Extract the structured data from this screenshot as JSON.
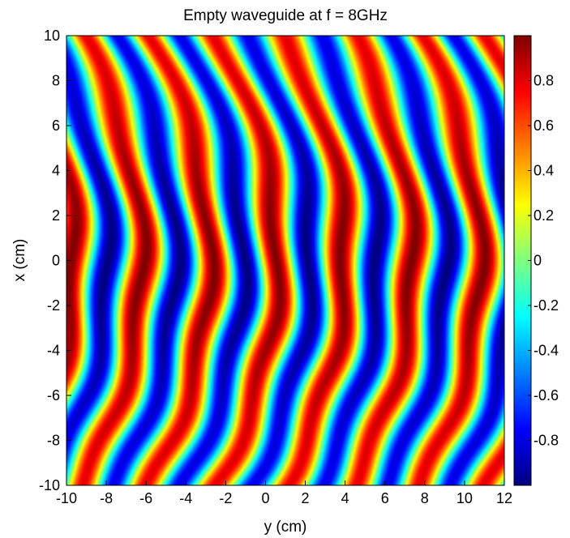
{
  "chart_data": {
    "type": "heatmap",
    "title": "Empty waveguide at f = 8GHz",
    "xlabel": "y (cm)",
    "ylabel": "x (cm)",
    "xlim": [
      -10,
      12
    ],
    "ylim": [
      -10,
      10
    ],
    "x_ticks": [
      "-10",
      "-8",
      "-6",
      "-4",
      "-2",
      "0",
      "2",
      "4",
      "6",
      "8",
      "10",
      "12"
    ],
    "y_ticks": [
      "-10",
      "-8",
      "-6",
      "-4",
      "-2",
      "0",
      "2",
      "4",
      "6",
      "8",
      "10"
    ],
    "colorbar": {
      "range": [
        -1,
        1
      ],
      "colormap": "jet",
      "ticks": [
        "-0.8",
        "-0.6",
        "-0.4",
        "-0.2",
        "0",
        "0.2",
        "0.4",
        "0.6",
        "0.8"
      ]
    },
    "field": {
      "description_pattern": "standing-wave field with curved wavefronts",
      "amplitude": 1.0,
      "wavelength_cm": 3.4,
      "phase_offset_cm": 0.6,
      "front_curvature_cm_per_cm2": 0.03
    }
  }
}
